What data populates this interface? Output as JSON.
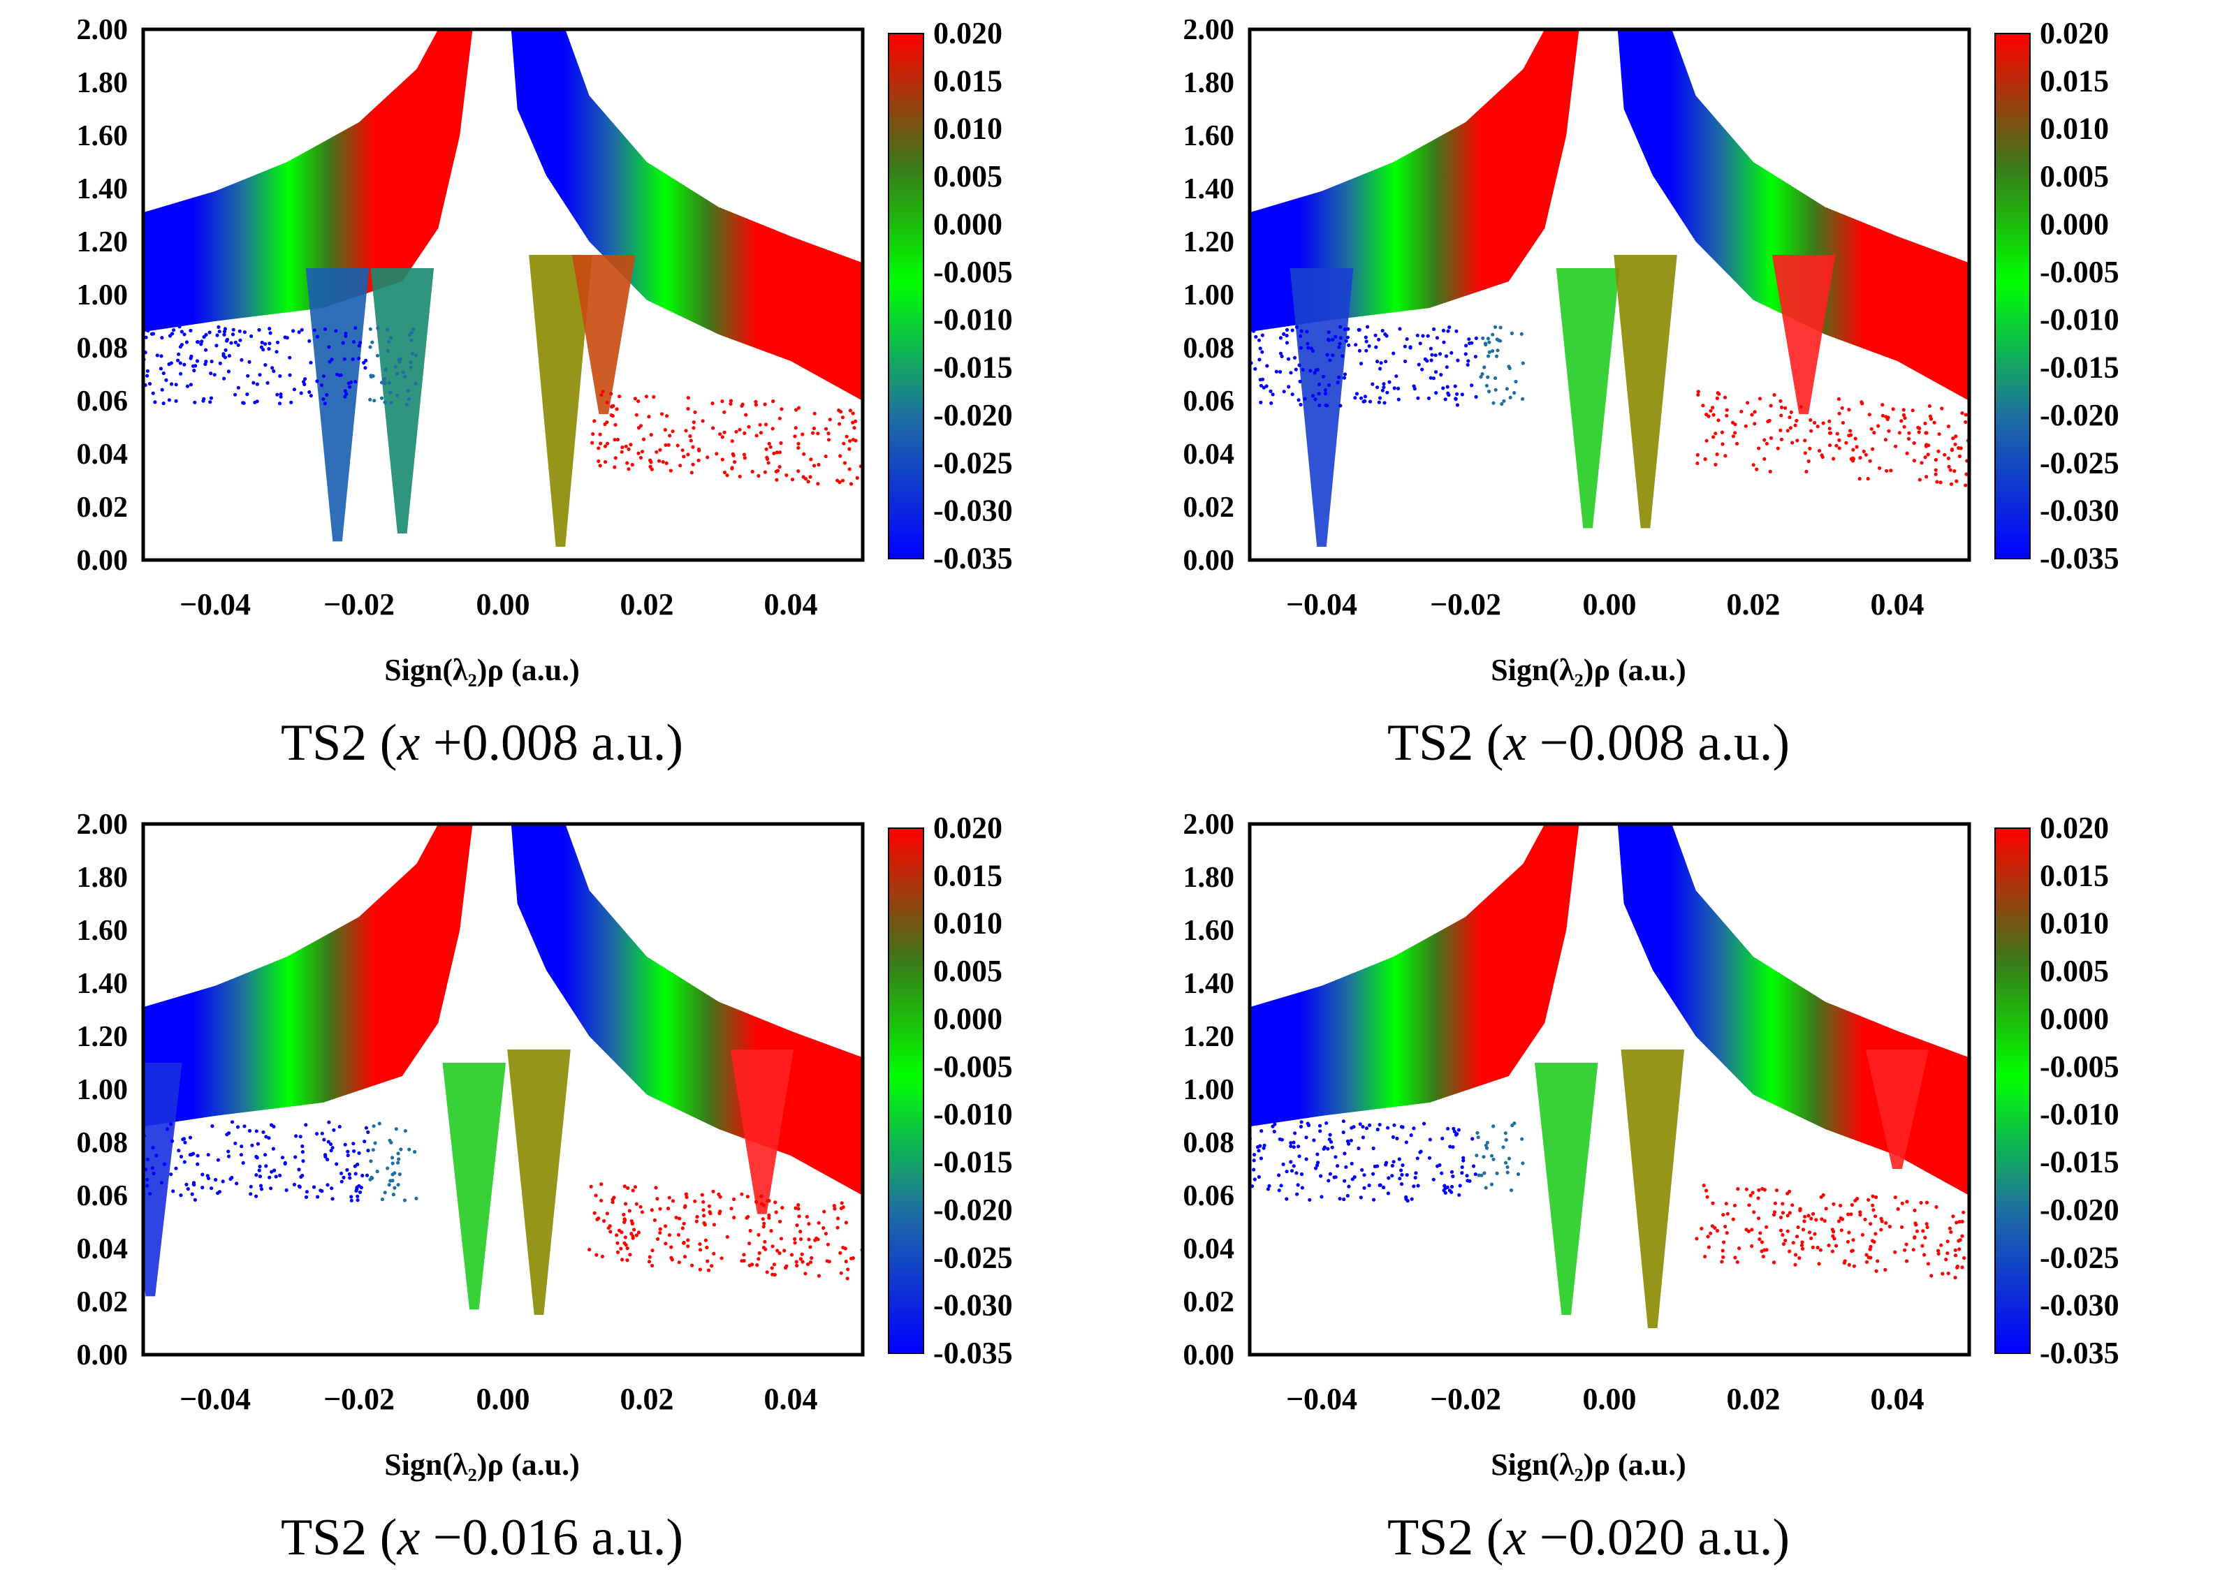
{
  "figure": {
    "colorbar_stops": [
      "#0000ff",
      "#1f6fa0",
      "#00ff00",
      "#3a7a1a",
      "#ff0000"
    ]
  },
  "chart_data": [
    {
      "type": "scatter",
      "caption": "TS2 (x +0.008 a.u.)",
      "caption_parts": {
        "prefix": "TS2 (",
        "var": "x",
        "suffix": " +0.008 a.u.)"
      },
      "xlabel": "Sign(λ₂)ρ (a.u.)",
      "xlim": [
        -0.05,
        0.05
      ],
      "ylim": [
        0,
        2
      ],
      "xticks": [
        -0.04,
        -0.02,
        0.0,
        0.02,
        0.04
      ],
      "xtick_labels": [
        "−0.04",
        "−0.02",
        "0.00",
        "0.02",
        "0.04"
      ],
      "ytick_labels": [
        "0.00",
        "0.02",
        "0.04",
        "0.06",
        "0.08",
        "1.00",
        "1.20",
        "1.40",
        "1.60",
        "1.80",
        "2.00"
      ],
      "colorbar": {
        "range": [
          -0.035,
          0.02
        ],
        "tick_labels": [
          "0.020",
          "0.015",
          "0.010",
          "0.005",
          "0.000",
          "-0.005",
          "-0.010",
          "-0.015",
          "-0.020",
          "-0.025",
          "-0.030",
          "-0.035"
        ]
      },
      "spikes": [
        {
          "x": -0.023,
          "y": 0.07,
          "color": "#1a5fb0"
        },
        {
          "x": -0.014,
          "y": 0.1,
          "color": "#1a8a70"
        },
        {
          "x": 0.008,
          "y": 0.05,
          "color": "#8a8a00"
        },
        {
          "x": 0.014,
          "y": 0.55,
          "color": "#c84a10"
        }
      ]
    },
    {
      "type": "scatter",
      "caption": "TS2 (x −0.008 a.u.)",
      "caption_parts": {
        "prefix": "TS2 (",
        "var": "x",
        "suffix": " −0.008 a.u.)"
      },
      "xlabel": "Sign(λ₂)ρ (a.u.)",
      "xlim": [
        -0.05,
        0.05
      ],
      "ylim": [
        0,
        2
      ],
      "xticks": [
        -0.04,
        -0.02,
        0.0,
        0.02,
        0.04
      ],
      "xtick_labels": [
        "−0.04",
        "−0.02",
        "0.00",
        "0.02",
        "0.04"
      ],
      "ytick_labels": [
        "0.00",
        "0.02",
        "0.04",
        "0.06",
        "0.08",
        "1.00",
        "1.20",
        "1.40",
        "1.60",
        "1.80",
        "2.00"
      ],
      "colorbar": {
        "range": [
          -0.035,
          0.02
        ],
        "tick_labels": [
          "0.020",
          "0.015",
          "0.010",
          "0.005",
          "0.000",
          "-0.005",
          "-0.010",
          "-0.015",
          "-0.020",
          "-0.025",
          "-0.030",
          "-0.035"
        ]
      },
      "spikes": [
        {
          "x": -0.04,
          "y": 0.05,
          "color": "#1a3fd0"
        },
        {
          "x": -0.003,
          "y": 0.12,
          "color": "#22cc22"
        },
        {
          "x": 0.005,
          "y": 0.12,
          "color": "#8a8a00"
        },
        {
          "x": 0.027,
          "y": 0.55,
          "color": "#ff2020"
        }
      ]
    },
    {
      "type": "scatter",
      "caption": "TS2 (x −0.016 a.u.)",
      "caption_parts": {
        "prefix": "TS2 (",
        "var": "x",
        "suffix": " −0.016 a.u.)"
      },
      "xlabel": "Sign(λ₂)ρ (a.u.)",
      "xlim": [
        -0.05,
        0.05
      ],
      "ylim": [
        0,
        2
      ],
      "xticks": [
        -0.04,
        -0.02,
        0.0,
        0.02,
        0.04
      ],
      "xtick_labels": [
        "−0.04",
        "−0.02",
        "0.00",
        "0.02",
        "0.04"
      ],
      "ytick_labels": [
        "0.00",
        "0.02",
        "0.04",
        "0.06",
        "0.08",
        "1.00",
        "1.20",
        "1.40",
        "1.60",
        "1.80",
        "2.00"
      ],
      "colorbar": {
        "range": [
          -0.035,
          0.02
        ],
        "tick_labels": [
          "0.020",
          "0.015",
          "0.010",
          "0.005",
          "0.000",
          "-0.005",
          "-0.010",
          "-0.015",
          "-0.020",
          "-0.025",
          "-0.030",
          "-0.035"
        ]
      },
      "spikes": [
        {
          "x": -0.049,
          "y": 0.22,
          "color": "#1a2fe0"
        },
        {
          "x": -0.004,
          "y": 0.17,
          "color": "#22cc22"
        },
        {
          "x": 0.005,
          "y": 0.15,
          "color": "#8a8a00"
        },
        {
          "x": 0.036,
          "y": 0.53,
          "color": "#ff2020"
        }
      ]
    },
    {
      "type": "scatter",
      "caption": "TS2 (x −0.020 a.u.)",
      "caption_parts": {
        "prefix": "TS2 (",
        "var": "x",
        "suffix": " −0.020 a.u.)"
      },
      "xlabel": "Sign(λ₂)ρ (a.u.)",
      "xlim": [
        -0.05,
        0.05
      ],
      "ylim": [
        0,
        2
      ],
      "xticks": [
        -0.04,
        -0.02,
        0.0,
        0.02,
        0.04
      ],
      "xtick_labels": [
        "−0.04",
        "−0.02",
        "0.00",
        "0.02",
        "0.04"
      ],
      "ytick_labels": [
        "0.00",
        "0.02",
        "0.04",
        "0.06",
        "0.08",
        "1.00",
        "1.20",
        "1.40",
        "1.60",
        "1.80",
        "2.00"
      ],
      "colorbar": {
        "range": [
          -0.035,
          0.02
        ],
        "tick_labels": [
          "0.020",
          "0.015",
          "0.010",
          "0.005",
          "0.000",
          "-0.005",
          "-0.010",
          "-0.015",
          "-0.020",
          "-0.025",
          "-0.030",
          "-0.035"
        ]
      },
      "spikes": [
        {
          "x": -0.006,
          "y": 0.15,
          "color": "#22cc22"
        },
        {
          "x": 0.006,
          "y": 0.1,
          "color": "#8a8a00"
        },
        {
          "x": 0.04,
          "y": 0.7,
          "color": "#ff2020"
        }
      ]
    }
  ]
}
